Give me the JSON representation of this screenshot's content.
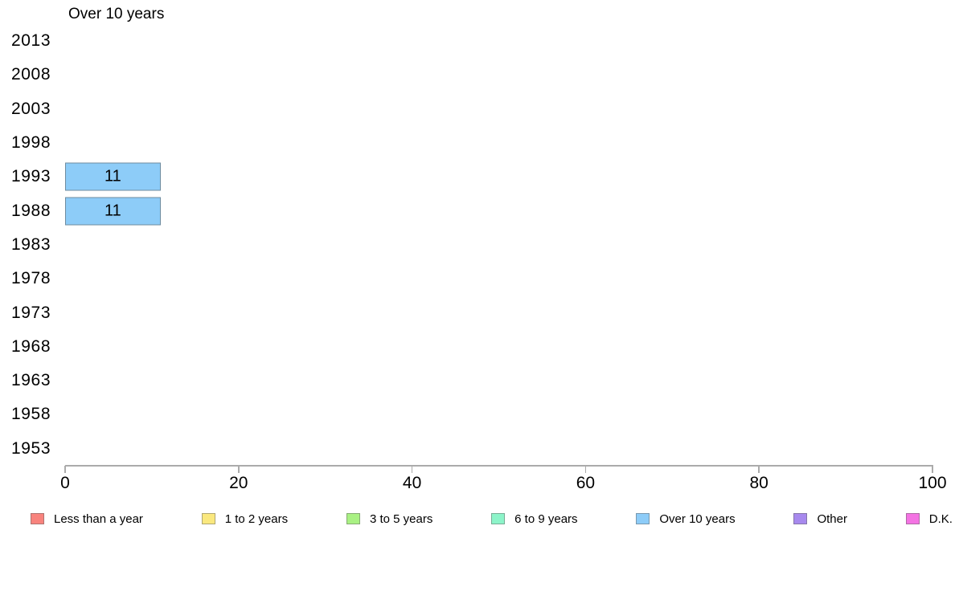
{
  "title": "Over 10 years",
  "colors": {
    "bar_fill": "#8DCCF8",
    "bar_border": "#555555",
    "axis": "#ABABAB",
    "text": "#000000",
    "background": "#FFFFFF"
  },
  "chart_data": {
    "type": "bar",
    "orientation": "horizontal",
    "title": "Over 10 years",
    "categories": [
      "2013",
      "2008",
      "2003",
      "1998",
      "1993",
      "1988",
      "1983",
      "1978",
      "1973",
      "1968",
      "1963",
      "1958",
      "1953"
    ],
    "series": [
      {
        "name": "Over 10 years",
        "color": "#8DCCF8",
        "values": [
          null,
          null,
          null,
          null,
          11,
          11,
          null,
          null,
          null,
          null,
          null,
          null,
          null
        ]
      }
    ],
    "bar_value_labels": [
      "",
      "",
      "",
      "",
      "11",
      "11",
      "",
      "",
      "",
      "",
      "",
      "",
      ""
    ],
    "xlim": [
      0,
      100
    ],
    "x_ticks": [
      0,
      20,
      40,
      60,
      80,
      100
    ],
    "grid": false,
    "legend_position": "bottom"
  },
  "legend": {
    "items": [
      {
        "label": "Less than a year",
        "color": "#F8837D"
      },
      {
        "label": "1 to 2 years",
        "color": "#FAE87E"
      },
      {
        "label": "3 to 5 years",
        "color": "#A9F183"
      },
      {
        "label": "6 to 9 years",
        "color": "#8CF4C9"
      },
      {
        "label": "Over 10 years",
        "color": "#8DCCF8"
      },
      {
        "label": "Other",
        "color": "#A789EE"
      },
      {
        "label": "D.K.",
        "color": "#F473E3"
      }
    ]
  }
}
